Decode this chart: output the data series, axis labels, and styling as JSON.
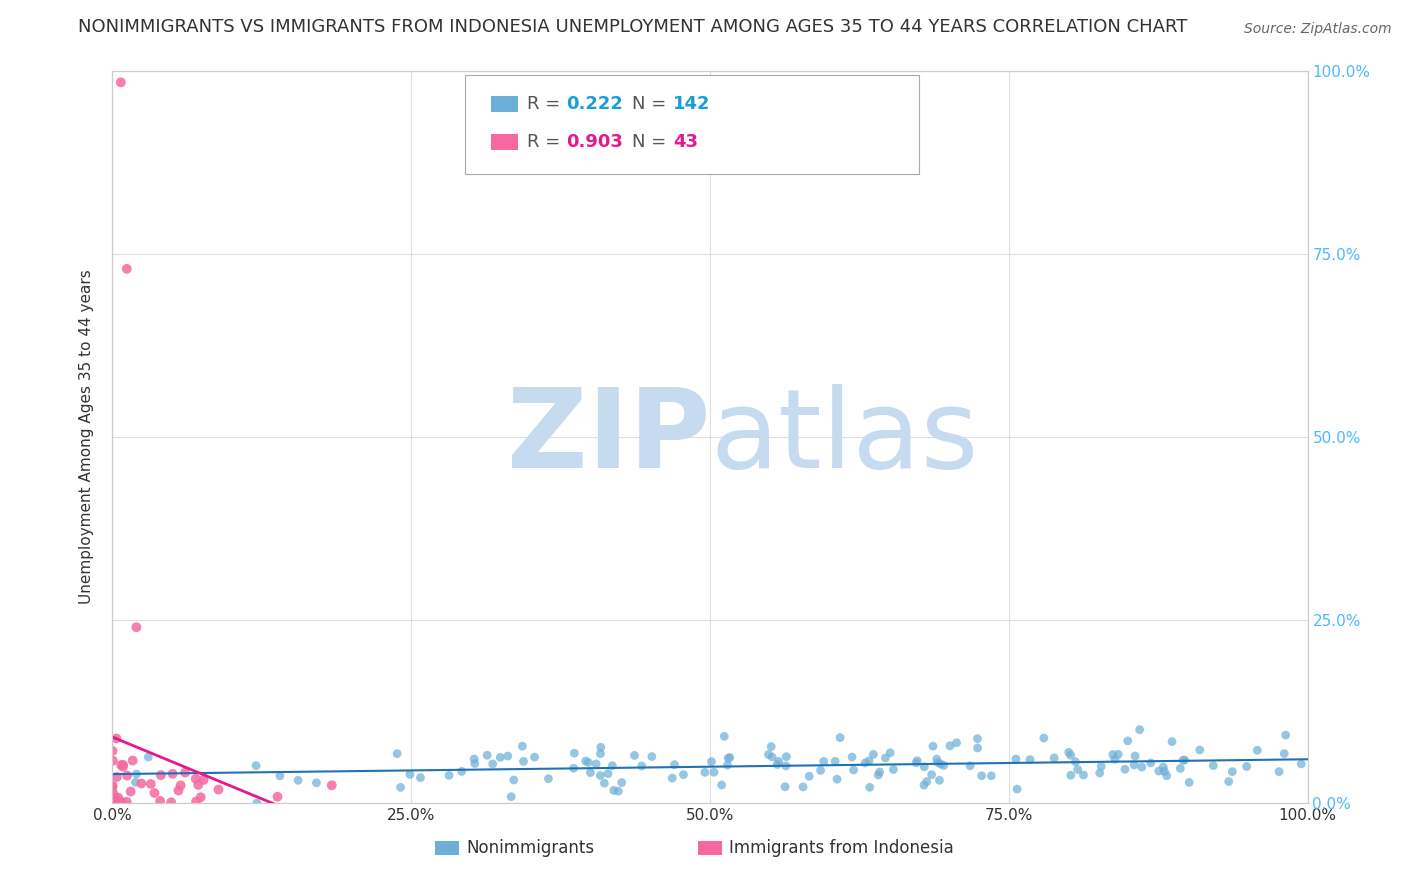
{
  "title": "NONIMMIGRANTS VS IMMIGRANTS FROM INDONESIA UNEMPLOYMENT AMONG AGES 35 TO 44 YEARS CORRELATION CHART",
  "source": "Source: ZipAtlas.com",
  "ylabel": "Unemployment Among Ages 35 to 44 years",
  "xlim": [
    0,
    1
  ],
  "ylim": [
    0,
    1
  ],
  "xtick_labels": [
    "0.0%",
    "25.0%",
    "50.0%",
    "75.0%",
    "100.0%"
  ],
  "xtick_vals": [
    0,
    0.25,
    0.5,
    0.75,
    1.0
  ],
  "ytick_labels_right": [
    "0.0%",
    "25.0%",
    "50.0%",
    "75.0%",
    "100.0%"
  ],
  "ytick_vals": [
    0,
    0.25,
    0.5,
    0.75,
    1.0
  ],
  "nonimm_R": 0.222,
  "nonimm_N": 142,
  "immig_R": 0.903,
  "immig_N": 43,
  "nonimm_color": "#6baed6",
  "immig_color": "#f768a1",
  "nonimm_line_color": "#2171b5",
  "immig_line_color": "#e31a8d",
  "legend_label_nonimm": "Nonimmigrants",
  "legend_label_immig": "Immigrants from Indonesia",
  "watermark_zip": "ZIP",
  "watermark_atlas": "atlas",
  "watermark_color": "#c6dbef",
  "background_color": "#ffffff",
  "grid_color": "#d0d0d0",
  "title_fontsize": 13,
  "source_fontsize": 10,
  "axis_fontsize": 11,
  "tick_fontsize": 11,
  "legend_fontsize": 13
}
